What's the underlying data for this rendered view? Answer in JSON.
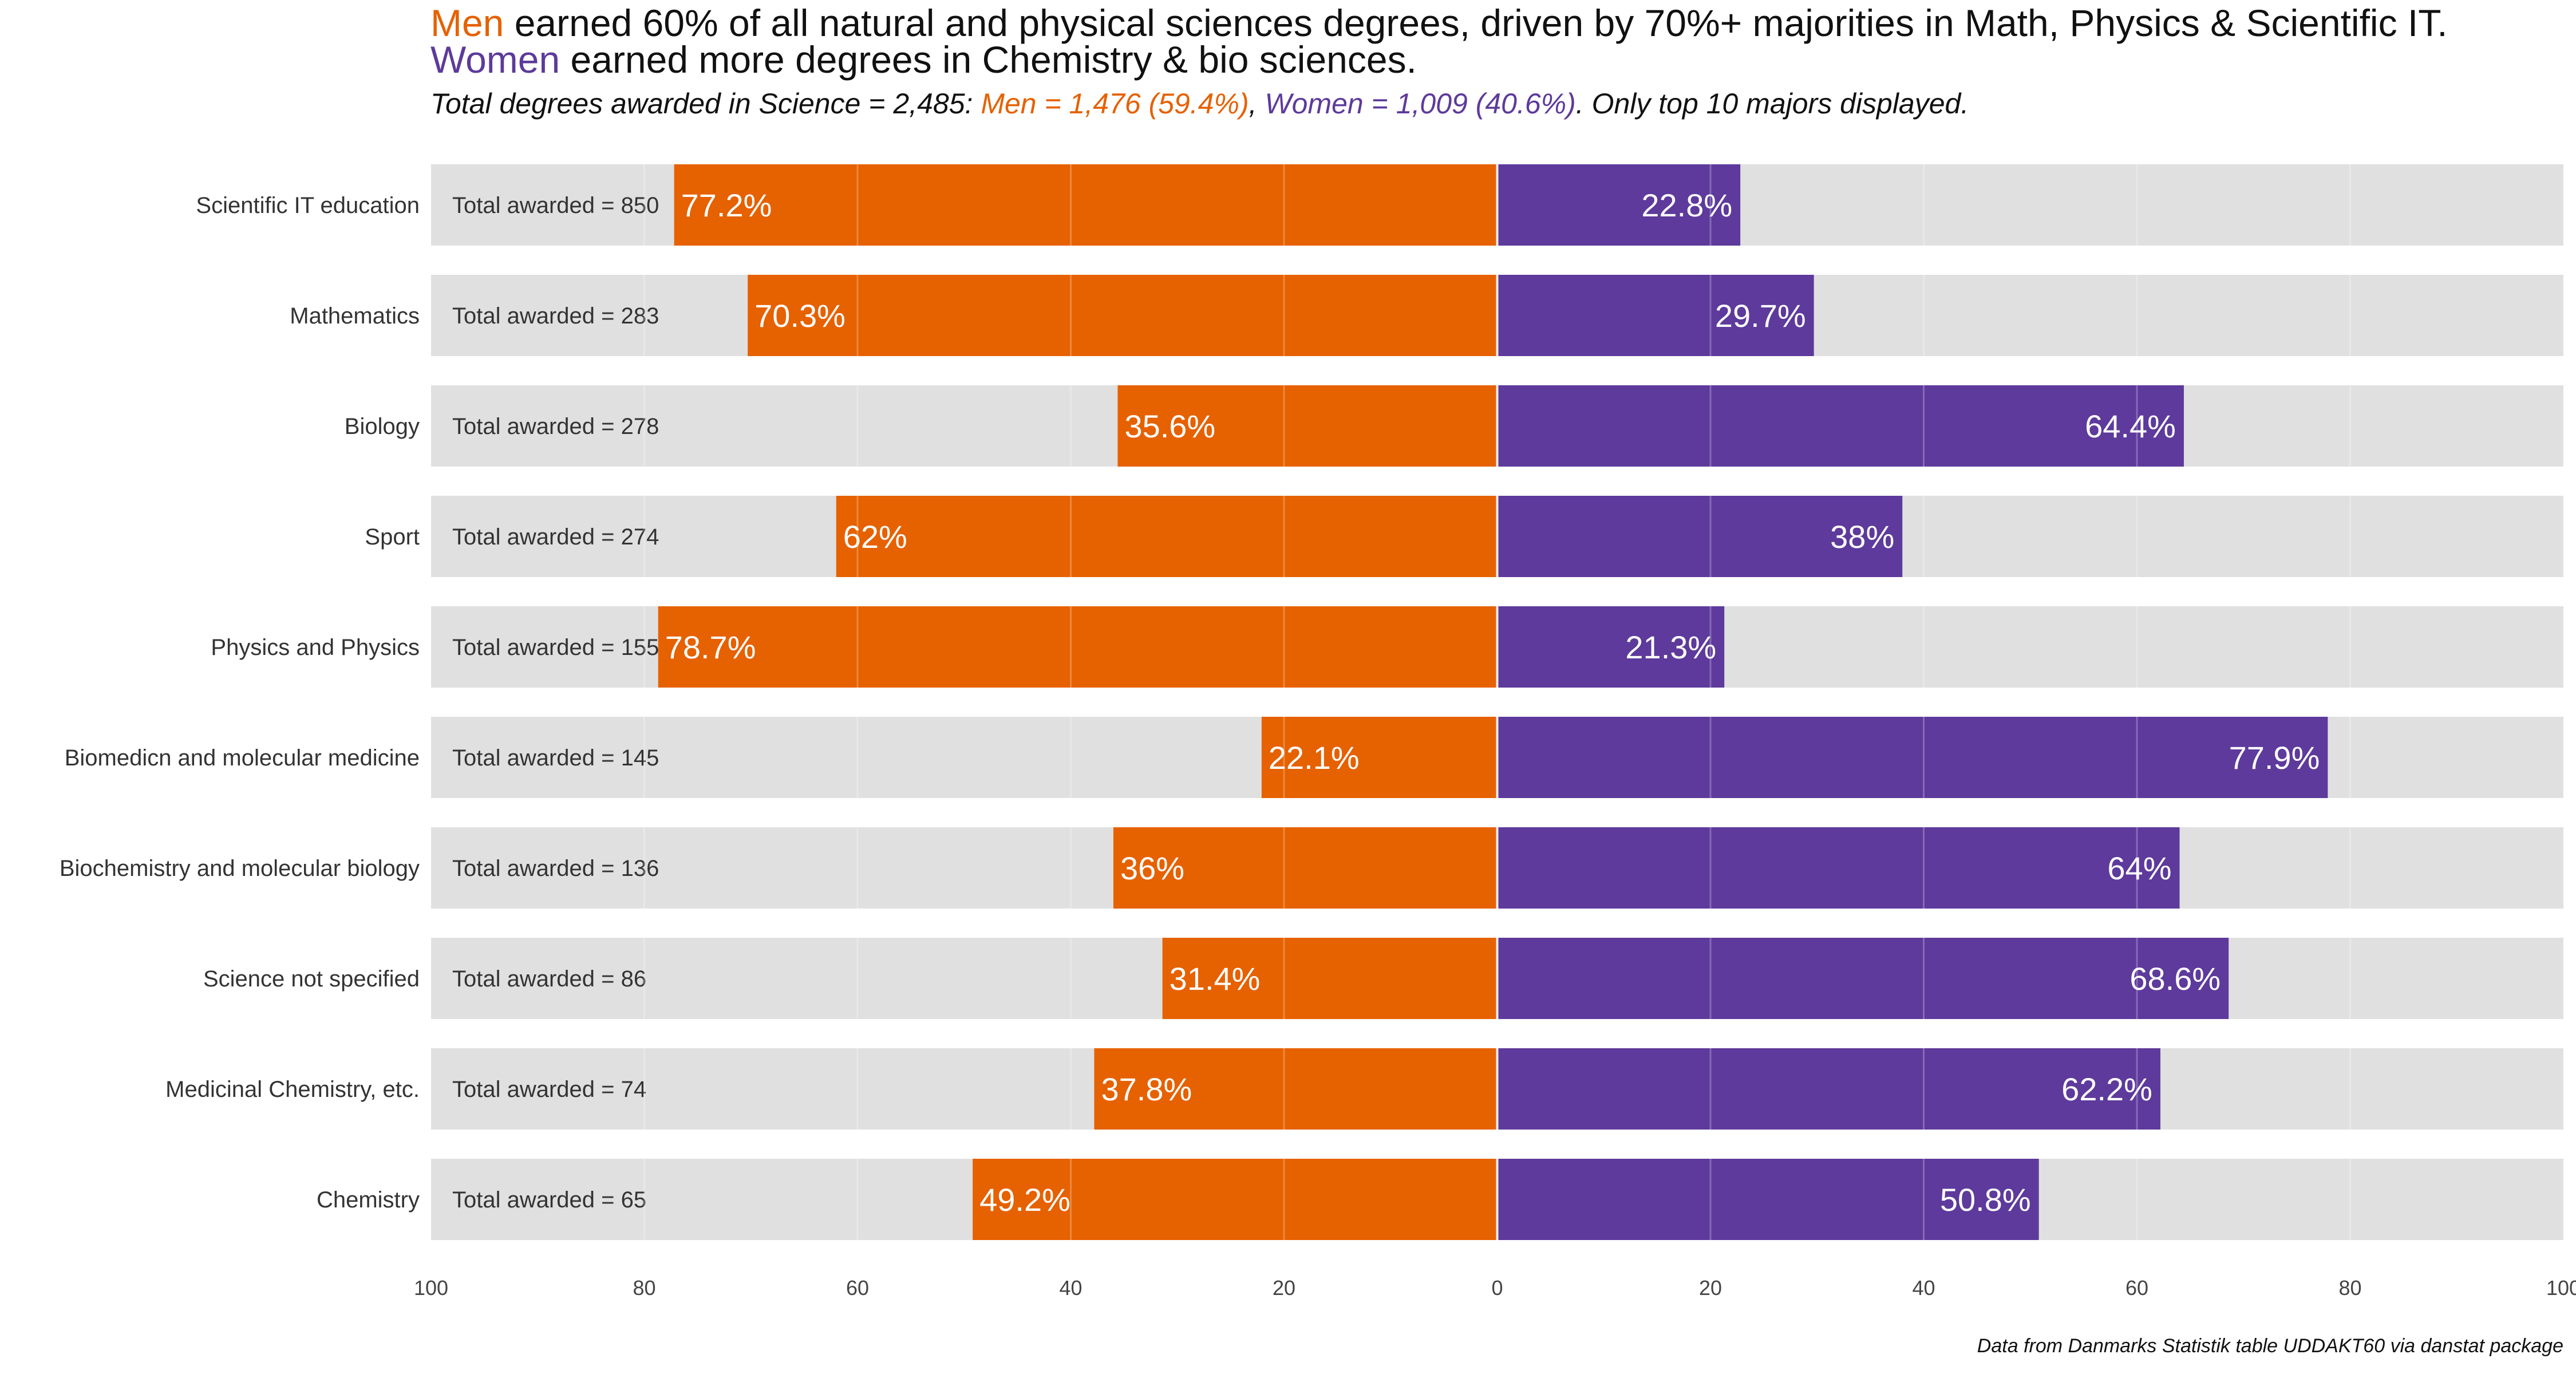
{
  "title": {
    "line1_men": "Men",
    "line1_rest": " earned 60% of all natural and physical sciences degrees, driven by 70%+ majorities in Math, Physics & Scientific IT.",
    "line2_women": "Women",
    "line2_rest": " earned more degrees in Chemistry & bio sciences."
  },
  "subtitle": {
    "lead": "Total degrees awarded in Science = 2,485: ",
    "men": "Men = 1,476 (59.4%)",
    "sep": ", ",
    "women": "Women = 1,009 (40.6%)",
    "tail": ". Only top 10 majors displayed."
  },
  "caption": "Data from Danmarks Statistik table UDDAKT60 via danstat package",
  "colors": {
    "men": "#E66100",
    "women": "#5D3A9B",
    "background_bar": "#E0E0E0",
    "label_inside": "#FFFFFF"
  },
  "chart_data": {
    "type": "bar",
    "orientation": "horizontal-diverging",
    "categories": [
      "Scientific IT education",
      "Mathematics",
      "Biology",
      "Sport",
      "Physics and Physics",
      "Biomedicn and molecular medicine",
      "Biochemistry and molecular biology",
      "Science not specified",
      "Medicinal Chemistry, etc.",
      "Chemistry"
    ],
    "total_label_prefix": "Total awarded = ",
    "totals": [
      850,
      283,
      278,
      274,
      155,
      145,
      136,
      86,
      74,
      65
    ],
    "series": [
      {
        "name": "Men",
        "values": [
          77.2,
          70.3,
          35.6,
          62,
          78.7,
          22.1,
          36,
          31.4,
          37.8,
          49.2
        ]
      },
      {
        "name": "Women",
        "values": [
          22.8,
          29.7,
          64.4,
          38,
          21.3,
          77.9,
          64,
          68.6,
          62.2,
          50.8
        ]
      }
    ],
    "value_label_suffix": "%",
    "x_ticks": [
      "100",
      "80",
      "60",
      "40",
      "20",
      "0",
      "20",
      "40",
      "60",
      "80",
      "100"
    ],
    "xlim": [
      -100,
      100
    ],
    "grid": true
  }
}
